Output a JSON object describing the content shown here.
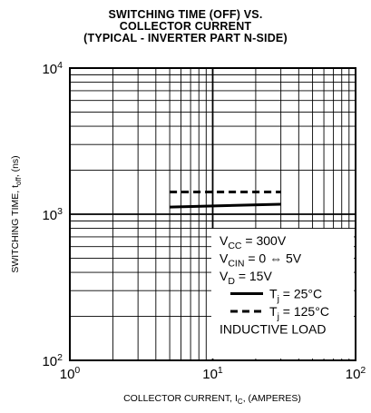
{
  "chart_data": {
    "type": "line",
    "title_lines": [
      "SWITCHING TIME (OFF) VS.",
      "COLLECTOR CURRENT",
      "(TYPICAL - INVERTER PART N-SIDE)"
    ],
    "xlabel": {
      "main": "COLLECTOR CURRENT, I",
      "sub": "C",
      "tail": ", (AMPERES)"
    },
    "ylabel": {
      "main": "SWITCHING TIME, t",
      "sub": "off",
      "tail": ", (ns)"
    },
    "x_scale": "log",
    "y_scale": "log",
    "xlim": [
      1,
      100
    ],
    "ylim": [
      100,
      10000
    ],
    "grid": true,
    "x_ticks": [
      {
        "value": 1,
        "base": "10",
        "exp": "0"
      },
      {
        "value": 10,
        "base": "10",
        "exp": "1"
      },
      {
        "value": 100,
        "base": "10",
        "exp": "2"
      }
    ],
    "y_ticks": [
      {
        "value": 100,
        "base": "10",
        "exp": "2"
      },
      {
        "value": 1000,
        "base": "10",
        "exp": "3"
      },
      {
        "value": 10000,
        "base": "10",
        "exp": "4"
      }
    ],
    "series": [
      {
        "name_main": "T",
        "name_sub": "j",
        "name_tail": " = 25°C",
        "style": "solid",
        "x": [
          5,
          30
        ],
        "y": [
          1120,
          1170
        ]
      },
      {
        "name_main": "T",
        "name_sub": "j",
        "name_tail": " = 125°C",
        "style": "dashed",
        "x": [
          5,
          30
        ],
        "y": [
          1420,
          1420
        ]
      }
    ],
    "legend": {
      "position": "bottom-right",
      "conditions": [
        {
          "main": "V",
          "sub": "CC",
          "tail": " = 300V"
        },
        {
          "main": "V",
          "sub": "CIN",
          "tail": " = 0 ⇔ 5V"
        },
        {
          "main": "V",
          "sub": "D",
          "tail": " = 15V"
        }
      ],
      "note": "INDUCTIVE LOAD"
    }
  }
}
